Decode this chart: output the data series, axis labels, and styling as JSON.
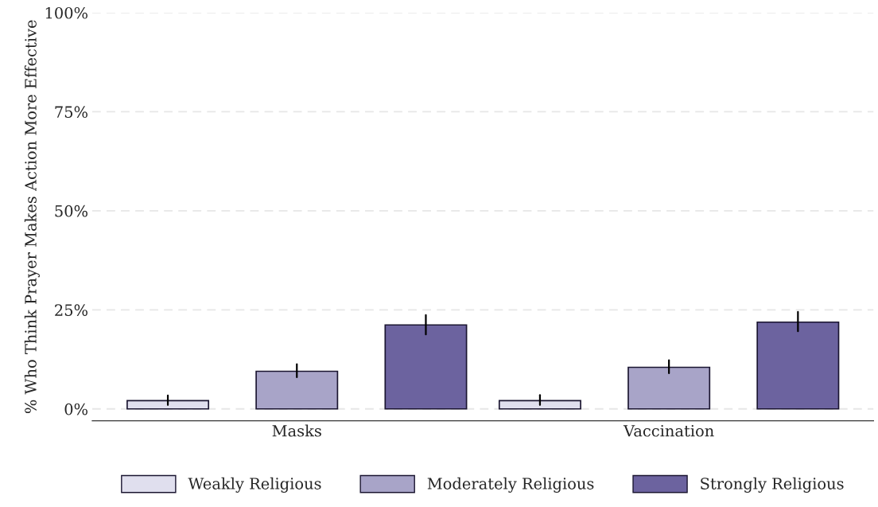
{
  "chart_data": {
    "type": "bar",
    "ylabel": "% Who Think Prayer Makes Action More Effective",
    "categories": [
      "Masks",
      "Vaccination"
    ],
    "series": [
      {
        "name": "Weakly Religious",
        "color": "#e0dfee",
        "values": [
          2.1,
          2.1
        ],
        "errors": [
          [
            1.0,
            3.4
          ],
          [
            1.0,
            3.5
          ]
        ]
      },
      {
        "name": "Moderately Religious",
        "color": "#a8a4c8",
        "values": [
          9.5,
          10.5
        ],
        "errors": [
          [
            8.0,
            11.3
          ],
          [
            9.0,
            12.3
          ]
        ]
      },
      {
        "name": "Strongly Religious",
        "color": "#6c639f",
        "values": [
          21.2,
          21.9
        ],
        "errors": [
          [
            18.8,
            23.7
          ],
          [
            19.6,
            24.5
          ]
        ]
      }
    ],
    "ylim": [
      -3,
      100
    ],
    "yticks": [
      {
        "value": 0,
        "label": "0%"
      },
      {
        "value": 25,
        "label": "25%"
      },
      {
        "value": 50,
        "label": "50%"
      },
      {
        "value": 75,
        "label": "75%"
      },
      {
        "value": 100,
        "label": "100%"
      }
    ],
    "grid": "y",
    "legend": "bottom"
  }
}
